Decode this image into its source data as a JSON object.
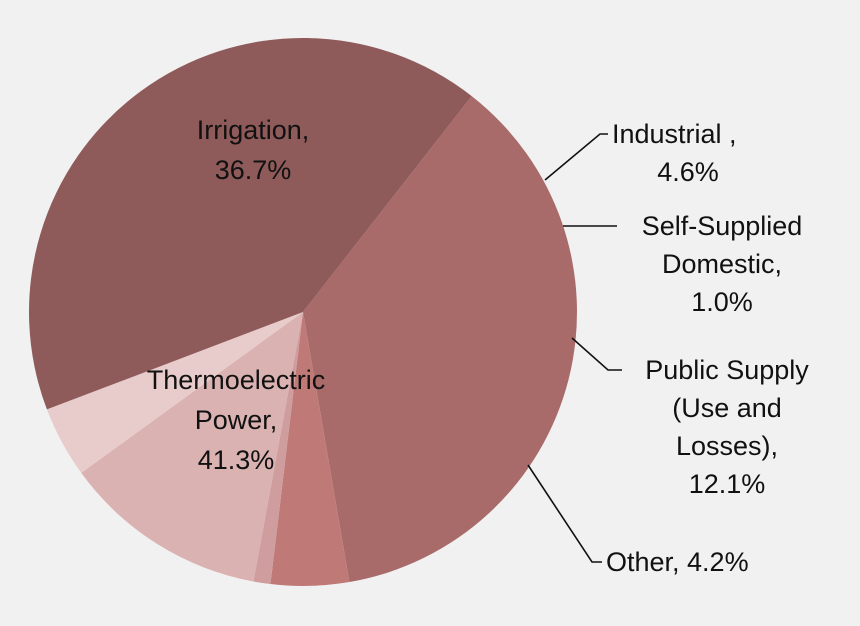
{
  "chart_data": {
    "type": "pie",
    "title": "",
    "slices": [
      {
        "label": "Irrigation",
        "value": 36.7,
        "color": "#a96b6a",
        "label_lines": [
          "Irrigation,",
          "36.7%"
        ]
      },
      {
        "label": "Industrial",
        "value": 4.6,
        "color": "#bf7a77",
        "label_lines": [
          "Industrial ,",
          "4.6%"
        ]
      },
      {
        "label": "Self-Supplied Domestic",
        "value": 1.0,
        "color": "#cf9d9d",
        "label_lines": [
          "Self-Supplied",
          "Domestic,",
          "1.0%"
        ]
      },
      {
        "label": "Public Supply (Use and Losses)",
        "value": 12.1,
        "color": "#dbb2b2",
        "label_lines": [
          "Public Supply",
          "(Use and",
          "Losses),",
          "12.1%"
        ]
      },
      {
        "label": "Other",
        "value": 4.2,
        "color": "#e8cbcb",
        "label_lines": [
          "Other, 4.2%"
        ]
      },
      {
        "label": "Thermoelectric Power",
        "value": 41.3,
        "color": "#8f5a5a",
        "label_lines": [
          "Thermoelectric",
          "Power,",
          "41.3%"
        ]
      }
    ]
  }
}
